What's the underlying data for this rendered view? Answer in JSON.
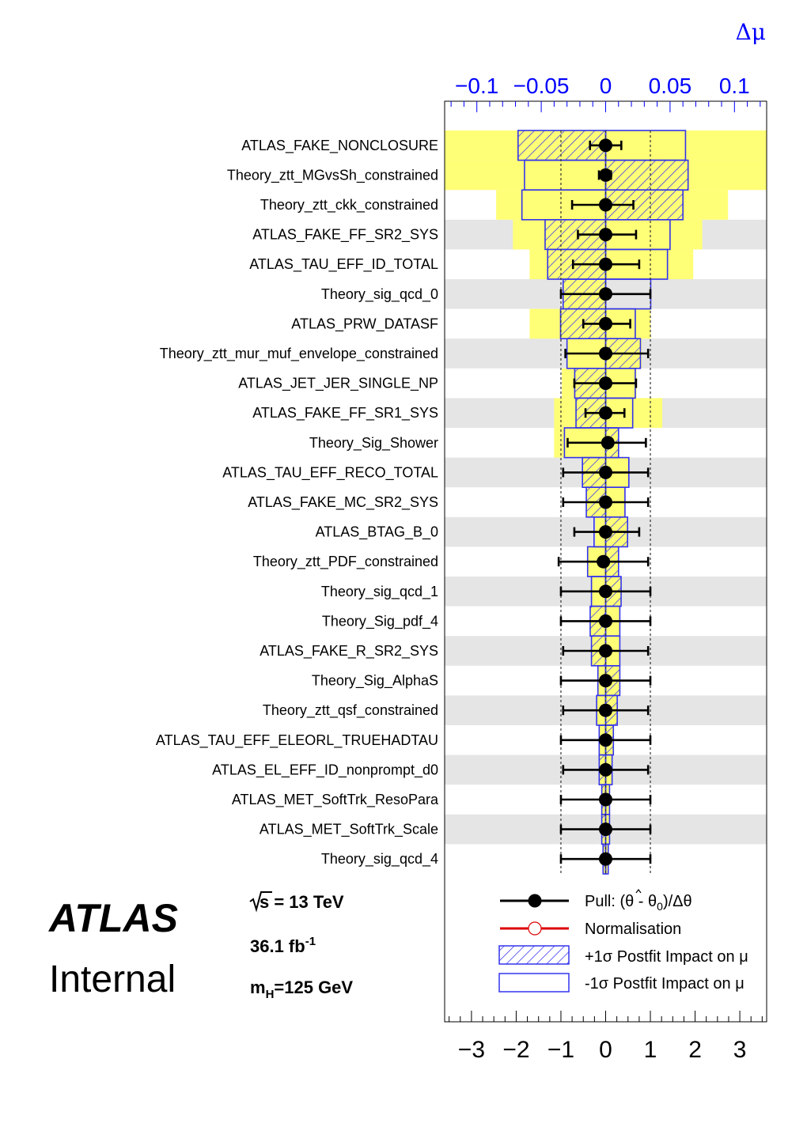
{
  "chart_data": {
    "type": "ranking-impact",
    "top_axis": {
      "label": "Δμ",
      "range": [
        -0.125,
        0.125
      ],
      "ticks": [
        -0.1,
        -0.05,
        0,
        0.05,
        0.1
      ],
      "tick_labels": [
        "−0.1",
        "−0.05",
        "0",
        "0.05",
        "0.1"
      ]
    },
    "bottom_axis": {
      "range": [
        -3.6,
        3.6
      ],
      "ticks": [
        -3,
        -2,
        -1,
        0,
        1,
        2,
        3
      ],
      "tick_labels": [
        "−3",
        "−2",
        "−1",
        "0",
        "1",
        "2",
        "3"
      ]
    },
    "colors": {
      "prefit_band": "#ffff77",
      "postfit_box": "#3333ee",
      "pull": "#000000",
      "norm": "#dd0000",
      "stripe": "#e5e5e5"
    },
    "parameters": [
      {
        "name": "ATLAS_FAKE_NONCLOSURE",
        "pull": 0.0,
        "err_lo": -0.35,
        "err_hi": 0.35,
        "pre_lo": -0.127,
        "pre_hi": 0.125,
        "post_up": [
          -0.068,
          0.0
        ],
        "post_dn": [
          0.0,
          0.062
        ]
      },
      {
        "name": "Theory_ztt_MGvsSh_constrained",
        "pull": 0.0,
        "err_lo": -0.15,
        "err_hi": 0.12,
        "pre_lo": -0.127,
        "pre_hi": 0.125,
        "post_up": [
          0.0,
          0.064
        ],
        "post_dn": [
          -0.063,
          0.0
        ]
      },
      {
        "name": "Theory_ztt_ckk_constrained",
        "pull": 0.0,
        "err_lo": -0.75,
        "err_hi": 0.62,
        "pre_lo": -0.085,
        "pre_hi": 0.095,
        "post_up": [
          0.0,
          0.06
        ],
        "post_dn": [
          -0.065,
          0.0
        ]
      },
      {
        "name": "ATLAS_FAKE_FF_SR2_SYS",
        "pull": 0.0,
        "err_lo": -0.62,
        "err_hi": 0.68,
        "pre_lo": -0.072,
        "pre_hi": 0.075,
        "post_up": [
          -0.047,
          0.0
        ],
        "post_dn": [
          0.0,
          0.05
        ]
      },
      {
        "name": "ATLAS_TAU_EFF_ID_TOTAL",
        "pull": 0.0,
        "err_lo": -0.73,
        "err_hi": 0.75,
        "pre_lo": -0.059,
        "pre_hi": 0.068,
        "post_up": [
          -0.045,
          0.0
        ],
        "post_dn": [
          0.0,
          0.048
        ]
      },
      {
        "name": "Theory_sig_qcd_0",
        "pull": 0.0,
        "err_lo": -1.0,
        "err_hi": 1.0,
        "pre_lo": -0.033,
        "pre_hi": 0.0,
        "post_up": [
          -0.033,
          0.0
        ],
        "post_dn": [
          0.0,
          0.035
        ]
      },
      {
        "name": "ATLAS_PRW_DATASF",
        "pull": 0.0,
        "err_lo": -0.5,
        "err_hi": 0.55,
        "pre_lo": -0.059,
        "pre_hi": 0.035,
        "post_up": [
          -0.035,
          0.0
        ],
        "post_dn": [
          0.0,
          0.023
        ]
      },
      {
        "name": "Theory_ztt_mur_muf_envelope_constrained",
        "pull": 0.0,
        "err_lo": -0.9,
        "err_hi": 0.95,
        "pre_lo": -0.03,
        "pre_hi": 0.028,
        "post_up": [
          0.0,
          0.027
        ],
        "post_dn": [
          -0.03,
          0.0
        ]
      },
      {
        "name": "ATLAS_JET_JER_SINGLE_NP",
        "pull": 0.0,
        "err_lo": -0.7,
        "err_hi": 0.68,
        "pre_lo": -0.034,
        "pre_hi": 0.024,
        "post_up": [
          -0.024,
          0.0
        ],
        "post_dn": [
          0.0,
          0.023
        ]
      },
      {
        "name": "ATLAS_FAKE_FF_SR1_SYS",
        "pull": 0.0,
        "err_lo": -0.45,
        "err_hi": 0.42,
        "pre_lo": -0.04,
        "pre_hi": 0.044,
        "post_up": [
          -0.023,
          0.0
        ],
        "post_dn": [
          0.0,
          0.021
        ]
      },
      {
        "name": "Theory_Sig_Shower",
        "pull": 0.05,
        "err_lo": -0.9,
        "err_hi": 0.85,
        "pre_lo": -0.04,
        "pre_hi": 0.01,
        "post_up": [
          0.0,
          0.01
        ],
        "post_dn": [
          -0.032,
          0.0
        ]
      },
      {
        "name": "ATLAS_TAU_EFF_RECO_TOTAL",
        "pull": 0.0,
        "err_lo": -0.95,
        "err_hi": 0.95,
        "pre_lo": -0.018,
        "pre_hi": 0.018,
        "post_up": [
          -0.018,
          0.0
        ],
        "post_dn": [
          0.0,
          0.018
        ]
      },
      {
        "name": "ATLAS_FAKE_MC_SR2_SYS",
        "pull": 0.0,
        "err_lo": -0.95,
        "err_hi": 0.95,
        "pre_lo": -0.015,
        "pre_hi": 0.015,
        "post_up": [
          -0.015,
          0.0
        ],
        "post_dn": [
          0.0,
          0.015
        ]
      },
      {
        "name": "ATLAS_BTAG_B_0",
        "pull": 0.0,
        "err_lo": -0.7,
        "err_hi": 0.75,
        "pre_lo": -0.008,
        "pre_hi": 0.017,
        "post_up": [
          0.0,
          0.017
        ],
        "post_dn": [
          -0.009,
          0.0
        ]
      },
      {
        "name": "Theory_ztt_PDF_constrained",
        "pull": -0.05,
        "err_lo": -1.0,
        "err_hi": 1.0,
        "pre_lo": -0.014,
        "pre_hi": 0.01,
        "post_up": [
          0.0,
          0.01
        ],
        "post_dn": [
          -0.014,
          0.0
        ]
      },
      {
        "name": "Theory_sig_qcd_1",
        "pull": 0.0,
        "err_lo": -1.0,
        "err_hi": 1.0,
        "pre_lo": -0.011,
        "pre_hi": 0.012,
        "post_up": [
          0.0,
          0.012
        ],
        "post_dn": [
          -0.011,
          0.0
        ]
      },
      {
        "name": "Theory_Sig_pdf_4",
        "pull": 0.0,
        "err_lo": -1.0,
        "err_hi": 1.0,
        "pre_lo": -0.012,
        "pre_hi": 0.011,
        "post_up": [
          -0.012,
          0.0
        ],
        "post_dn": [
          0.0,
          0.011
        ]
      },
      {
        "name": "ATLAS_FAKE_R_SR2_SYS",
        "pull": 0.0,
        "err_lo": -0.95,
        "err_hi": 0.95,
        "pre_lo": -0.011,
        "pre_hi": 0.011,
        "post_up": [
          -0.011,
          0.0
        ],
        "post_dn": [
          0.0,
          0.011
        ]
      },
      {
        "name": "Theory_Sig_AlphaS",
        "pull": 0.0,
        "err_lo": -1.0,
        "err_hi": 1.0,
        "pre_lo": -0.006,
        "pre_hi": 0.011,
        "post_up": [
          0.0,
          0.011
        ],
        "post_dn": [
          -0.006,
          0.0
        ]
      },
      {
        "name": "Theory_ztt_qsf_constrained",
        "pull": 0.0,
        "err_lo": -0.95,
        "err_hi": 0.95,
        "pre_lo": -0.007,
        "pre_hi": 0.009,
        "post_up": [
          0.0,
          0.009
        ],
        "post_dn": [
          -0.007,
          0.0
        ]
      },
      {
        "name": "ATLAS_TAU_EFF_ELEORL_TRUEHADTAU",
        "pull": 0.0,
        "err_lo": -1.0,
        "err_hi": 1.0,
        "pre_lo": -0.005,
        "pre_hi": 0.006,
        "post_up": [
          0.0,
          0.006
        ],
        "post_dn": [
          -0.005,
          0.0
        ]
      },
      {
        "name": "ATLAS_EL_EFF_ID_nonprompt_d0",
        "pull": 0.0,
        "err_lo": -0.95,
        "err_hi": 0.95,
        "pre_lo": -0.005,
        "pre_hi": 0.005,
        "post_up": [
          -0.005,
          0.0
        ],
        "post_dn": [
          0.0,
          0.005
        ]
      },
      {
        "name": "ATLAS_MET_SoftTrk_ResoPara",
        "pull": 0.0,
        "err_lo": -1.0,
        "err_hi": 1.0,
        "pre_lo": -0.003,
        "pre_hi": 0.003,
        "post_up": [
          -0.003,
          0.0
        ],
        "post_dn": [
          0.0,
          0.003
        ]
      },
      {
        "name": "ATLAS_MET_SoftTrk_Scale",
        "pull": 0.0,
        "err_lo": -1.0,
        "err_hi": 1.0,
        "pre_lo": -0.003,
        "pre_hi": 0.003,
        "post_up": [
          -0.003,
          0.0
        ],
        "post_dn": [
          0.0,
          0.003
        ]
      },
      {
        "name": "Theory_sig_qcd_4",
        "pull": 0.0,
        "err_lo": -1.0,
        "err_hi": 1.0,
        "pre_lo": -0.002,
        "pre_hi": 0.002,
        "post_up": [
          -0.002,
          0.0
        ],
        "post_dn": [
          0.0,
          0.002
        ]
      }
    ]
  },
  "labels": {
    "atlas": "ATLAS",
    "internal": "Internal",
    "energy_value": "s = 13 TeV",
    "lumi": "36.1 fb",
    "lumi_exp": "-1",
    "mass_m": "m",
    "mass_sub": "H",
    "mass_rest": "=125 GeV"
  },
  "legend": {
    "pull_a": "Pull: (",
    "pull_theta": "θ",
    "pull_b": " - θ",
    "pull_sub": "0",
    "pull_c": ")/Δθ",
    "norm": "Normalisation",
    "plus": "+1σ Postfit Impact on μ",
    "minus": "-1σ Postfit Impact on μ"
  }
}
